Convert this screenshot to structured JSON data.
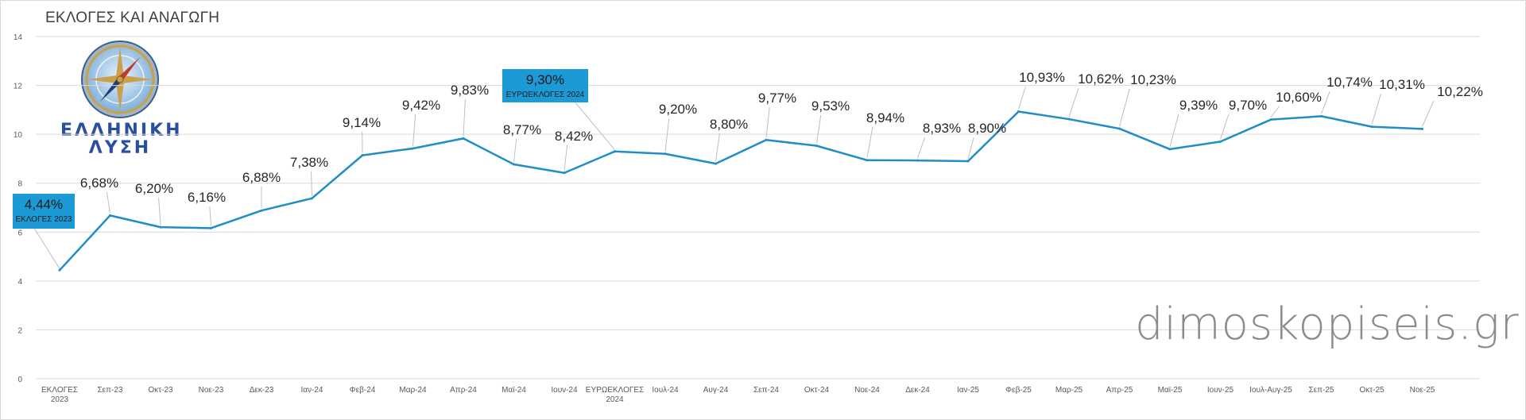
{
  "title": "ΕΚΛΟΓΕΣ ΚΑΙ ΑΝΑΓΩΓΗ",
  "watermark": "dimoskopiseis.gr",
  "logo": {
    "line1": "ΕΛΛΗΝΙΚΗ",
    "line2": "ΛΥΣΗ"
  },
  "colors": {
    "line": "#1f8dc6",
    "callout_bg": "#1b9ad6",
    "grid": "#d9d9d9"
  },
  "chart_data": {
    "type": "line",
    "title": "ΕΚΛΟΓΕΣ ΚΑΙ ΑΝΑΓΩΓΗ",
    "ylim": [
      0,
      14
    ],
    "yticks": [
      0,
      2,
      4,
      6,
      8,
      10,
      12,
      14
    ],
    "grid": true,
    "categories": [
      [
        "ΕΚΛΟΓΕΣ",
        "2023"
      ],
      [
        "Σεπ-23"
      ],
      [
        "Οκτ-23"
      ],
      [
        "Νοε-23"
      ],
      [
        "Δεκ-23"
      ],
      [
        "Ιαν-24"
      ],
      [
        "Φεβ-24"
      ],
      [
        "Μαρ-24"
      ],
      [
        "Απρ-24"
      ],
      [
        "Μαϊ-24"
      ],
      [
        "Ιουν-24"
      ],
      [
        "ΕΥΡΩΕΚΛΟΓΕΣ",
        "2024"
      ],
      [
        "Ιουλ-24"
      ],
      [
        "Αυγ-24"
      ],
      [
        "Σεπ-24"
      ],
      [
        "Οκτ-24"
      ],
      [
        "Νοε-24"
      ],
      [
        "Δεκ-24"
      ],
      [
        "Ιαν-25"
      ],
      [
        "Φεβ-25"
      ],
      [
        "Μαρ-25"
      ],
      [
        "Απρ-25"
      ],
      [
        "Μαϊ-25"
      ],
      [
        "Ιουν-25"
      ],
      [
        "Ιουλ-Αυγ-25"
      ],
      [
        "Σεπ-25"
      ],
      [
        "Οκτ-25"
      ],
      [
        "Νοε-25"
      ]
    ],
    "values": [
      4.44,
      6.68,
      6.2,
      6.16,
      6.88,
      7.38,
      9.14,
      9.42,
      9.83,
      8.77,
      8.42,
      9.3,
      9.2,
      8.8,
      9.77,
      9.53,
      8.94,
      8.93,
      8.9,
      10.93,
      10.62,
      10.23,
      9.39,
      9.7,
      10.6,
      10.74,
      10.31,
      10.22
    ],
    "labels": [
      "4,44%",
      "6,68%",
      "6,20%",
      "6,16%",
      "6,88%",
      "7,38%",
      "9,14%",
      "9,42%",
      "9,83%",
      "8,77%",
      "8,42%",
      "9,30%",
      "9,20%",
      "8,80%",
      "9,77%",
      "9,53%",
      "8,94%",
      "8,93%",
      "8,90%",
      "10,93%",
      "10,62%",
      "10,23%",
      "9,39%",
      "9,70%",
      "10,60%",
      "10,74%",
      "10,31%",
      "10,22%"
    ],
    "callouts": [
      {
        "index": 0,
        "value": "4,44%",
        "text": "ΕΚΛΟΓΕΣ 2023"
      },
      {
        "index": 11,
        "value": "9,30%",
        "text": "ΕΥΡΩΕΚΛΟΓΕΣ 2024"
      }
    ]
  }
}
